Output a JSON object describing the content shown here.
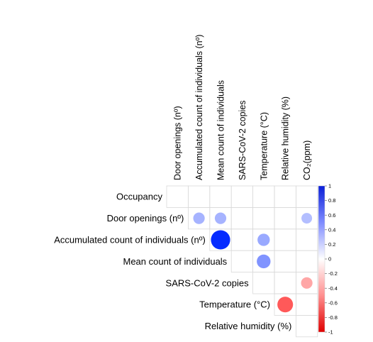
{
  "chart_data": {
    "type": "heatmap",
    "variant": "correlation-circles-upper-triangle",
    "rows": [
      "Occupancy",
      "Door openings (nº)",
      "Accumulated count of individuals (nº)",
      "Mean count of individuals",
      "SARS-CoV-2 copies",
      "Temperature (°C)",
      "Relative humidity (%)"
    ],
    "columns": [
      "Door openings (nº)",
      "Accumulated count of individuals (nº)",
      "Mean count of individuals",
      "SARS-CoV-2 copies",
      "Temperature (°C)",
      "Relative humidity (%)",
      "CO₂(ppm)"
    ],
    "cells": [
      {
        "row": 1,
        "col": 1,
        "value": 0.35
      },
      {
        "row": 1,
        "col": 2,
        "value": 0.35
      },
      {
        "row": 1,
        "col": 6,
        "value": 0.3
      },
      {
        "row": 2,
        "col": 2,
        "value": 0.98
      },
      {
        "row": 2,
        "col": 4,
        "value": 0.4
      },
      {
        "row": 3,
        "col": 4,
        "value": 0.5
      },
      {
        "row": 4,
        "col": 6,
        "value": -0.35
      },
      {
        "row": 5,
        "col": 5,
        "value": -0.65
      }
    ],
    "colorbar": {
      "range": [
        -1,
        1
      ],
      "ticks": [
        "1",
        "0.8",
        "0.6",
        "0.4",
        "0.2",
        "0",
        "-0.2",
        "-0.4",
        "-0.6",
        "-0.8",
        "-1"
      ],
      "color_positive": "#0027ff",
      "color_zero": "#ffffff",
      "color_negative": "#ff0000"
    },
    "grid": true
  }
}
